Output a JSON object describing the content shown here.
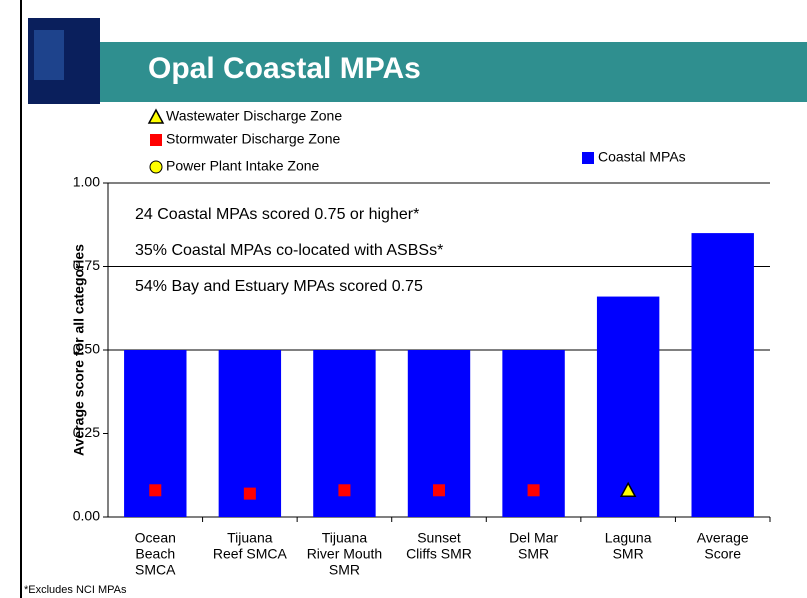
{
  "chart_data": {
    "type": "bar",
    "title": "Opal Coastal MPAs",
    "y_label": "Average score for all categories",
    "categories": [
      [
        "Ocean",
        "Beach",
        "SMCA"
      ],
      [
        "Tijuana",
        "Reef SMCA"
      ],
      [
        "Tijuana",
        "River Mouth",
        "SMR"
      ],
      [
        "Sunset",
        "Cliffs SMR"
      ],
      [
        "Del Mar",
        "SMR"
      ],
      [
        "Laguna",
        "SMR"
      ],
      [
        "Average",
        "Score"
      ]
    ],
    "series": [
      {
        "name": "Coastal MPAs",
        "color": "#0000ff",
        "marker": "bar",
        "values": [
          0.5,
          0.5,
          0.5,
          0.5,
          0.5,
          0.66,
          0.85
        ]
      },
      {
        "name": "Wastewater Discharge Zone",
        "color": "#ffff00",
        "marker": "triangle",
        "values": [
          null,
          null,
          null,
          null,
          null,
          0.08,
          null
        ]
      },
      {
        "name": "Stormwater Discharge Zone",
        "color": "#ff0000",
        "marker": "square",
        "values": [
          0.08,
          0.07,
          0.08,
          0.08,
          0.08,
          null,
          null
        ]
      },
      {
        "name": "Power Plant Intake Zone",
        "color": "#ffff00",
        "marker": "circle",
        "values": [
          null,
          null,
          null,
          null,
          null,
          null,
          null
        ]
      }
    ],
    "ylim": [
      0,
      1
    ],
    "yticks": [
      {
        "value": 0,
        "label": "0.00"
      },
      {
        "value": 0.25,
        "label": "0.25"
      },
      {
        "value": 0.5,
        "label": "0.50"
      },
      {
        "value": 0.75,
        "label": "0.75"
      },
      {
        "value": 1,
        "label": "1.00"
      }
    ],
    "gridlines": [
      0.5,
      0.75,
      1
    ],
    "annotations": [
      "24 Coastal MPAs scored 0.75 or higher*",
      "35% Coastal MPAs co-located with ASBSs*",
      "54% Bay and Estuary MPAs scored 0.75"
    ],
    "footnote": "*Excludes NCI MPAs"
  }
}
